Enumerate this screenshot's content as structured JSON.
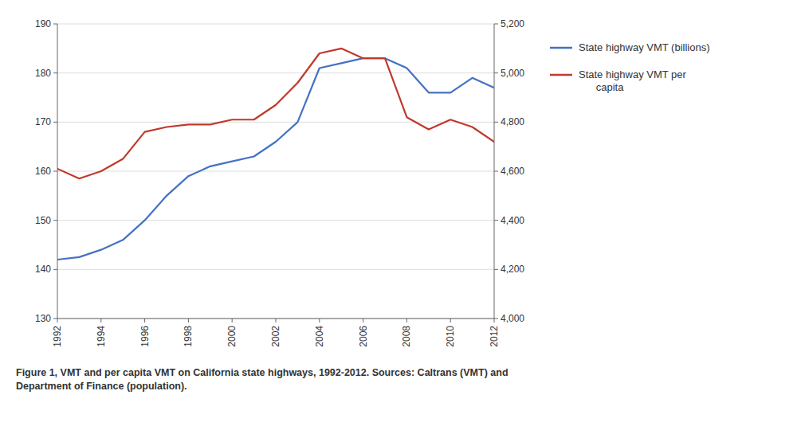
{
  "chart_data": {
    "type": "line",
    "caption": "Figure 1, VMT and per capita VMT on California state highways, 1992-2012. Sources: Caltrans (VMT) and\nDepartment of Finance (population).",
    "x": [
      1992,
      1993,
      1994,
      1995,
      1996,
      1997,
      1998,
      1999,
      2000,
      2001,
      2002,
      2003,
      2004,
      2005,
      2006,
      2007,
      2008,
      2009,
      2010,
      2011,
      2012
    ],
    "series": [
      {
        "name": "State highway VMT (billions)",
        "color": "#4472C4",
        "values": [
          142,
          142.5,
          144,
          146,
          150,
          155,
          159,
          161,
          162,
          163,
          166,
          170,
          181,
          182,
          183,
          183,
          181,
          176,
          176,
          179,
          177
        ]
      },
      {
        "name": "State highway VMT per\n      capita",
        "color": "#C0392B",
        "axis": "y2",
        "values": [
          4610,
          4570,
          4600,
          4650,
          4760,
          4780,
          4790,
          4790,
          4810,
          4810,
          4870,
          4960,
          5080,
          5100,
          5060,
          5060,
          4820,
          4770,
          4810,
          4780,
          4720
        ]
      }
    ],
    "xlim": [
      1992,
      2012
    ],
    "xticks": [
      1992,
      1994,
      1996,
      1998,
      2000,
      2002,
      2004,
      2006,
      2008,
      2010,
      2012
    ],
    "ylim": [
      130,
      190
    ],
    "yticks": [
      130,
      140,
      150,
      160,
      170,
      180,
      190
    ],
    "y2lim": [
      4000,
      5200
    ],
    "y2ticks": [
      {
        "value": 4000,
        "label": "4,000"
      },
      {
        "value": 4200,
        "label": "4,200"
      },
      {
        "value": 4400,
        "label": "4,400"
      },
      {
        "value": 4600,
        "label": "4,600"
      },
      {
        "value": 4800,
        "label": "4,800"
      },
      {
        "value": 5000,
        "label": "5,000"
      },
      {
        "value": 5200,
        "label": "5,200"
      }
    ],
    "grid": true,
    "legend": "right"
  }
}
